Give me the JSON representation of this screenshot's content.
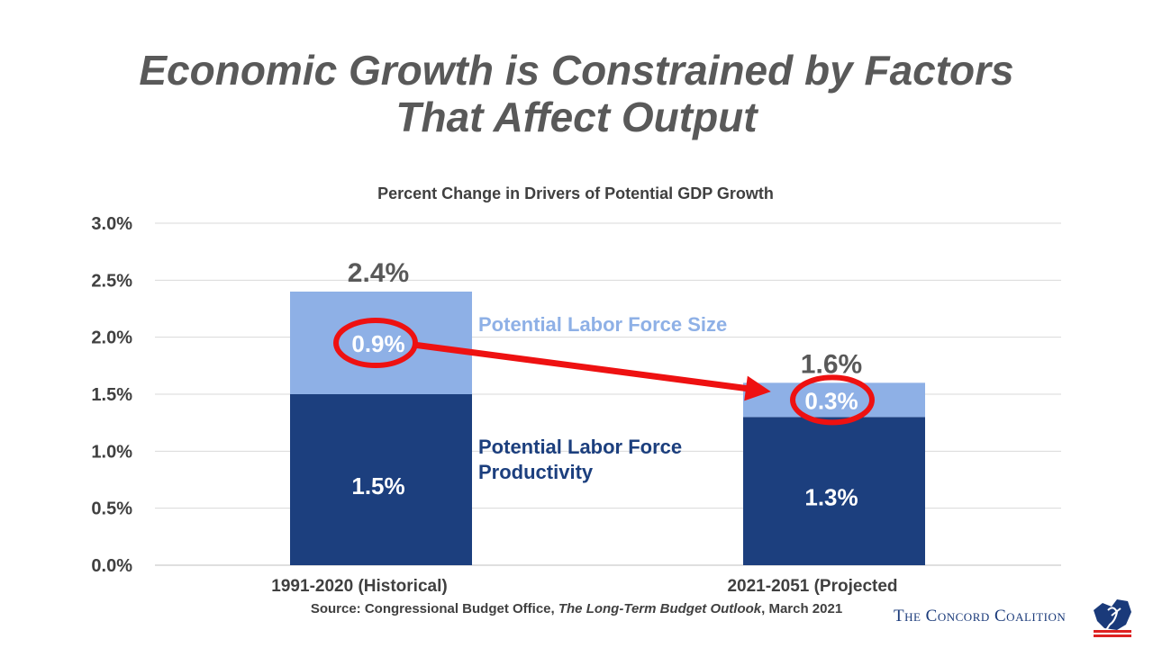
{
  "slide": {
    "title_line1": "Economic Growth is Constrained by Factors",
    "title_line2": "That Affect Output",
    "source_prefix": "Source: Congressional Budget Office, ",
    "source_title": "The Long-Term Budget Outlook",
    "source_suffix": ", March 2021",
    "logo_text": "The Concord Coalition"
  },
  "colors": {
    "labor_force_size": "#8eb0e6",
    "labor_force_productivity": "#1c3f7e",
    "highlight": "#ee1111",
    "axis_text": "#404040",
    "grid": "#d9d9d9"
  },
  "chart_data": {
    "type": "bar",
    "stacked": true,
    "title": "Percent Change in Drivers of Potential GDP Growth",
    "categories": [
      "1991-2020 (Historical)",
      "2021-2051 (Projected"
    ],
    "series": [
      {
        "name": "Potential Labor Force Productivity",
        "values": [
          1.5,
          1.3
        ],
        "value_labels": [
          "1.5%",
          "1.3%"
        ]
      },
      {
        "name": "Potential Labor Force Size",
        "values": [
          0.9,
          0.3
        ],
        "value_labels": [
          "0.9%",
          "0.3%"
        ]
      }
    ],
    "totals": [
      2.4,
      1.6
    ],
    "total_labels": [
      "2.4%",
      "1.6%"
    ],
    "series_label_lines": {
      "Potential Labor Force Size": [
        "Potential Labor Force Size"
      ],
      "Potential Labor Force Productivity": [
        "Potential Labor Force",
        "Productivity"
      ]
    },
    "ylim": [
      0,
      3.0
    ],
    "yticks": [
      0,
      0.5,
      1.0,
      1.5,
      2.0,
      2.5,
      3.0
    ],
    "ytick_labels": [
      "0.0%",
      "0.5%",
      "1.0%",
      "1.5%",
      "2.0%",
      "2.5%",
      "3.0%"
    ],
    "grid": true,
    "legend": "inline labels between bars",
    "annotations": [
      "red circles around 0.9% and 0.3%",
      "red arrow from 0.9% to 0.3%"
    ]
  }
}
